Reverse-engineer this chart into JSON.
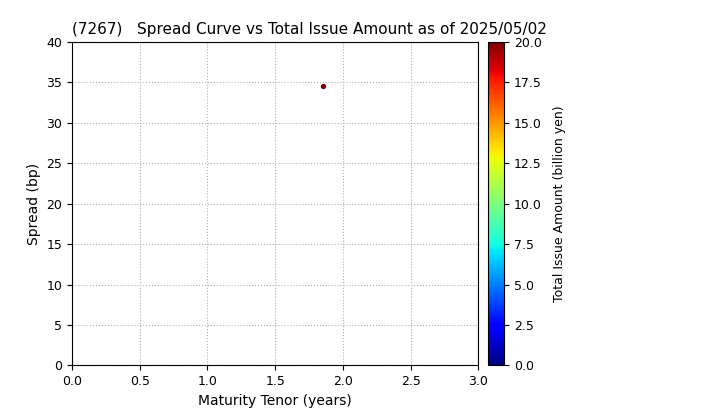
{
  "title": "(7267)   Spread Curve vs Total Issue Amount as of 2025/05/02",
  "xlabel": "Maturity Tenor (years)",
  "ylabel": "Spread (bp)",
  "colorbar_label": "Total Issue Amount (billion yen)",
  "xlim": [
    0.0,
    3.0
  ],
  "ylim": [
    0,
    40
  ],
  "xticks": [
    0.0,
    0.5,
    1.0,
    1.5,
    2.0,
    2.5,
    3.0
  ],
  "yticks": [
    0,
    5,
    10,
    15,
    20,
    25,
    30,
    35,
    40
  ],
  "colorbar_ticks": [
    0.0,
    2.5,
    5.0,
    7.5,
    10.0,
    12.5,
    15.0,
    17.5,
    20.0
  ],
  "cmap": "jet",
  "vmin": 0.0,
  "vmax": 20.0,
  "scatter_x": [
    1.85
  ],
  "scatter_y": [
    34.5
  ],
  "scatter_color": [
    20.0
  ],
  "scatter_size": 8,
  "background_color": "#ffffff",
  "grid_color": "#b0b0b0",
  "grid_linestyle": "dotted",
  "title_fontsize": 11,
  "axis_fontsize": 10,
  "colorbar_fontsize": 9,
  "tick_fontsize": 9
}
